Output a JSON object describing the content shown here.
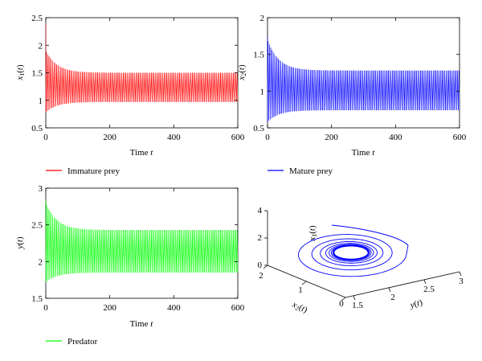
{
  "chart_data": [
    {
      "type": "line",
      "id": "x1",
      "title": "",
      "xlabel": "Time t",
      "ylabel": "x1(t)",
      "xlim": [
        0,
        600
      ],
      "ylim": [
        0.5,
        2.5
      ],
      "xticks": [
        0,
        200,
        400,
        600
      ],
      "yticks": [
        0.5,
        1,
        1.5,
        2,
        2.5
      ],
      "xtick_labels": [
        "0",
        "200",
        "400",
        "600"
      ],
      "ytick_labels": [
        "0.5",
        "1",
        "1.5",
        "2",
        "2.5"
      ],
      "grid": false,
      "legend_position": "below",
      "series": [
        {
          "name": "Immature prey",
          "color": "#ff0000",
          "start": 2.4,
          "lower_envelope": [
            0.78,
            0.97
          ],
          "upper_envelope": [
            1.9,
            1.5
          ]
        }
      ]
    },
    {
      "type": "line",
      "id": "x2",
      "title": "",
      "xlabel": "Time t",
      "ylabel": "x2(t)",
      "xlim": [
        0,
        600
      ],
      "ylim": [
        0.5,
        2
      ],
      "xticks": [
        0,
        200,
        400,
        600
      ],
      "yticks": [
        0.5,
        1,
        1.5,
        2
      ],
      "xtick_labels": [
        "0",
        "200",
        "400",
        "600"
      ],
      "ytick_labels": [
        "0.5",
        "1",
        "1.5",
        "2"
      ],
      "grid": false,
      "legend_position": "below",
      "series": [
        {
          "name": "Mature prey",
          "color": "#0000ff",
          "start": 1.75,
          "lower_envelope": [
            0.58,
            0.74
          ],
          "upper_envelope": [
            1.7,
            1.28
          ]
        }
      ]
    },
    {
      "type": "line",
      "id": "y",
      "title": "",
      "xlabel": "Time t",
      "ylabel": "y(t)",
      "xlim": [
        0,
        600
      ],
      "ylim": [
        1.5,
        3
      ],
      "xticks": [
        0,
        200,
        400,
        600
      ],
      "yticks": [
        1.5,
        2,
        2.5,
        3
      ],
      "xtick_labels": [
        "0",
        "200",
        "400",
        "600"
      ],
      "ytick_labels": [
        "1.5",
        "2",
        "2.5",
        "3"
      ],
      "grid": false,
      "legend_position": "below",
      "series": [
        {
          "name": "Predator",
          "color": "#00ff00",
          "start": 2.85,
          "lower_envelope": [
            1.72,
            1.85
          ],
          "upper_envelope": [
            2.8,
            2.43
          ]
        }
      ]
    },
    {
      "type": "line3d",
      "id": "phase",
      "title": "",
      "zlabel": "x1(t)",
      "xlabel": "x2(t)",
      "ylabel": "y(t)",
      "zticks": [
        "0",
        "2",
        "4"
      ],
      "x2ticks": [
        "0",
        "1",
        "2"
      ],
      "yticks": [
        "1.5",
        "2",
        "2.5",
        "3"
      ],
      "series": [
        {
          "name": "",
          "color": "#0000ff"
        }
      ]
    }
  ]
}
